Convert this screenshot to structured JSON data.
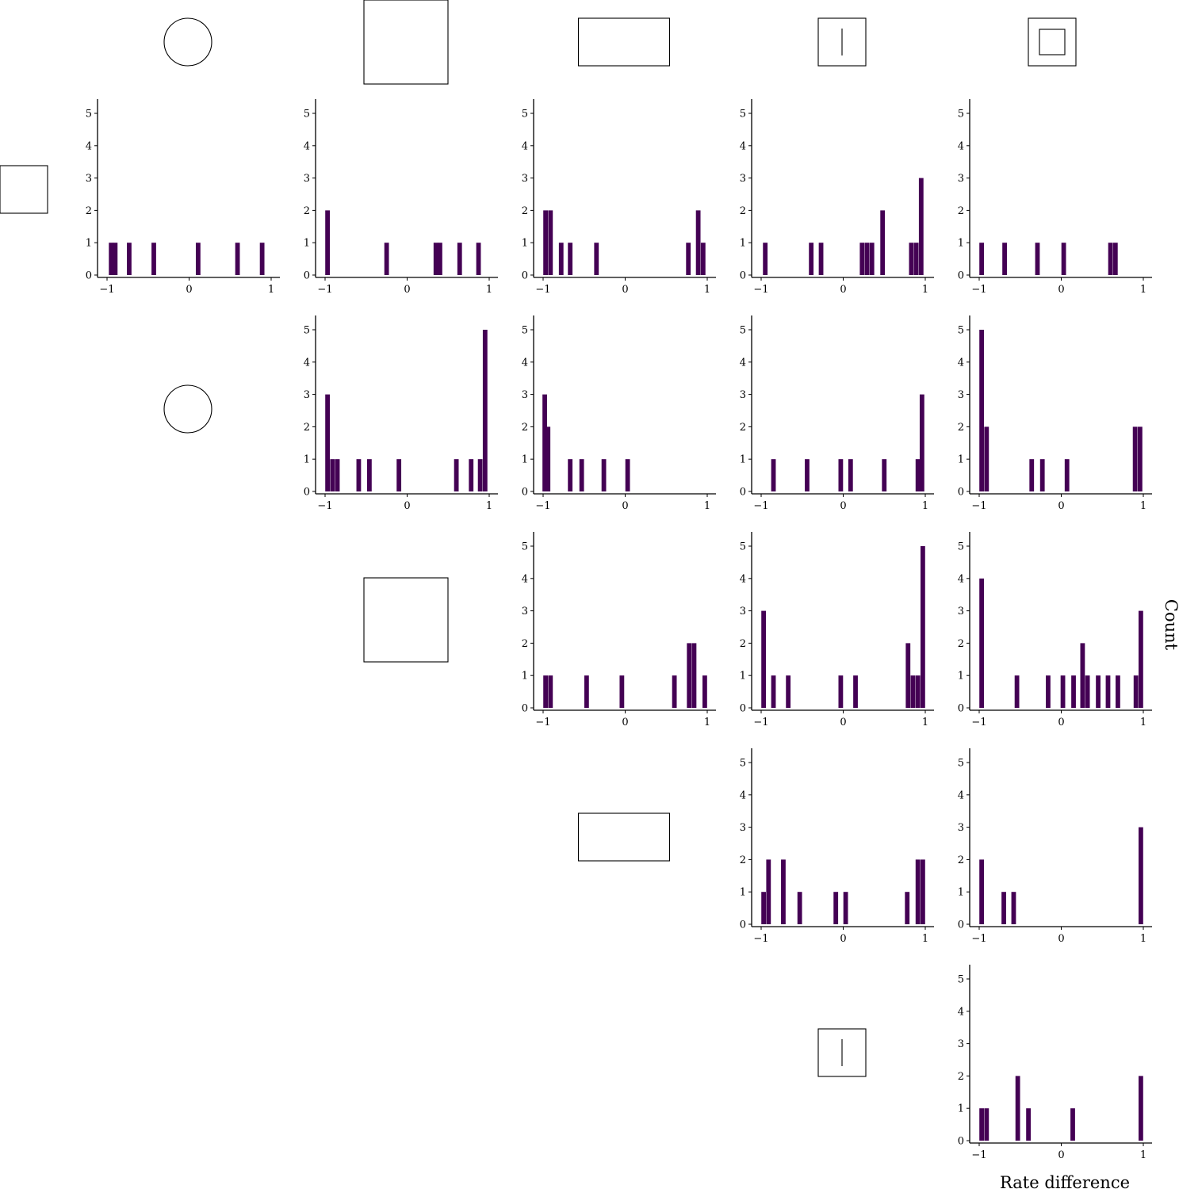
{
  "figure": {
    "xlabel": "Rate difference",
    "ylabel": "Count"
  },
  "colors": {
    "bar": "#440154",
    "axis": "#000000",
    "glyph_stroke": "#000000"
  },
  "glyphs": {
    "column_headers": [
      "square-small",
      "circle",
      "square-large",
      "rectangle-wide",
      "square-with-vertical-line",
      "nested-squares"
    ],
    "row_labels": [
      "square-small",
      "circle",
      "square-large",
      "rectangle-wide",
      "square-with-vertical-line"
    ]
  },
  "chart_data": [
    {
      "type": "bar",
      "row": 0,
      "col": 0,
      "x": [
        -0.95,
        -0.9,
        -0.73,
        -0.43,
        0.11,
        0.59,
        0.89
      ],
      "values": [
        1,
        1,
        1,
        1,
        1,
        1,
        1
      ],
      "xticks": [
        -1,
        0,
        1
      ],
      "yticks": [
        0,
        1,
        2,
        3,
        4,
        5
      ],
      "xlim": [
        -1.1,
        1.1
      ],
      "ylim": [
        0,
        5.5
      ]
    },
    {
      "type": "bar",
      "row": 0,
      "col": 1,
      "x": [
        -0.97,
        -0.25,
        0.35,
        0.4,
        0.64,
        0.87
      ],
      "values": [
        2,
        1,
        1,
        1,
        1,
        1
      ],
      "xticks": [
        -1,
        0,
        1
      ],
      "yticks": [
        0,
        1,
        2,
        3,
        4,
        5
      ],
      "xlim": [
        -1.1,
        1.1
      ],
      "ylim": [
        0,
        5.5
      ]
    },
    {
      "type": "bar",
      "row": 0,
      "col": 2,
      "x": [
        -0.97,
        -0.91,
        -0.78,
        -0.67,
        -0.35,
        0.77,
        0.89,
        0.95
      ],
      "values": [
        2,
        2,
        1,
        1,
        1,
        1,
        2,
        1
      ],
      "xticks": [
        -1,
        0,
        1
      ],
      "yticks": [
        0,
        1,
        2,
        3,
        4,
        5
      ],
      "xlim": [
        -1.1,
        1.1
      ],
      "ylim": [
        0,
        5.5
      ]
    },
    {
      "type": "bar",
      "row": 0,
      "col": 3,
      "x": [
        -0.95,
        -0.39,
        -0.27,
        0.23,
        0.29,
        0.35,
        0.48,
        0.83,
        0.89,
        0.95
      ],
      "values": [
        1,
        1,
        1,
        1,
        1,
        1,
        2,
        1,
        1,
        3
      ],
      "xticks": [
        -1,
        0,
        1
      ],
      "yticks": [
        0,
        1,
        2,
        3,
        4,
        5
      ],
      "xlim": [
        -1.1,
        1.1
      ],
      "ylim": [
        0,
        5.5
      ]
    },
    {
      "type": "bar",
      "row": 0,
      "col": 4,
      "x": [
        -0.97,
        -0.69,
        -0.29,
        0.03,
        0.6,
        0.66
      ],
      "values": [
        1,
        1,
        1,
        1,
        1,
        1
      ],
      "xticks": [
        -1,
        0,
        1
      ],
      "yticks": [
        0,
        1,
        2,
        3,
        4,
        5
      ],
      "xlim": [
        -1.1,
        1.1
      ],
      "ylim": [
        0,
        5.5
      ]
    },
    {
      "type": "bar",
      "row": 1,
      "col": 1,
      "x": [
        -0.97,
        -0.91,
        -0.85,
        -0.59,
        -0.46,
        -0.1,
        0.6,
        0.78,
        0.89,
        0.95
      ],
      "values": [
        3,
        1,
        1,
        1,
        1,
        1,
        1,
        1,
        1,
        5
      ],
      "xticks": [
        -1,
        0,
        1
      ],
      "yticks": [
        0,
        1,
        2,
        3,
        4,
        5
      ],
      "xlim": [
        -1.1,
        1.1
      ],
      "ylim": [
        0,
        5.5
      ]
    },
    {
      "type": "bar",
      "row": 1,
      "col": 2,
      "x": [
        -0.98,
        -0.94,
        -0.67,
        -0.53,
        -0.26,
        0.03
      ],
      "values": [
        3,
        2,
        1,
        1,
        1,
        1
      ],
      "xticks": [
        -1,
        0,
        1
      ],
      "yticks": [
        0,
        1,
        2,
        3,
        4,
        5
      ],
      "xlim": [
        -1.1,
        1.1
      ],
      "ylim": [
        0,
        5.5
      ]
    },
    {
      "type": "bar",
      "row": 1,
      "col": 3,
      "x": [
        -0.85,
        -0.44,
        -0.03,
        0.09,
        0.5,
        0.91,
        0.96
      ],
      "values": [
        1,
        1,
        1,
        1,
        1,
        1,
        3
      ],
      "xticks": [
        -1,
        0,
        1
      ],
      "yticks": [
        0,
        1,
        2,
        3,
        4,
        5
      ],
      "xlim": [
        -1.1,
        1.1
      ],
      "ylim": [
        0,
        5.5
      ]
    },
    {
      "type": "bar",
      "row": 1,
      "col": 4,
      "x": [
        -0.97,
        -0.91,
        -0.36,
        -0.23,
        0.07,
        0.9,
        0.96
      ],
      "values": [
        5,
        2,
        1,
        1,
        1,
        2,
        2
      ],
      "xticks": [
        -1,
        0,
        1
      ],
      "yticks": [
        0,
        1,
        2,
        3,
        4,
        5
      ],
      "xlim": [
        -1.1,
        1.1
      ],
      "ylim": [
        0,
        5.5
      ]
    },
    {
      "type": "bar",
      "row": 2,
      "col": 2,
      "x": [
        -0.97,
        -0.91,
        -0.47,
        -0.04,
        0.6,
        0.78,
        0.84,
        0.97
      ],
      "values": [
        1,
        1,
        1,
        1,
        1,
        2,
        2,
        1
      ],
      "xticks": [
        -1,
        0,
        1
      ],
      "yticks": [
        0,
        1,
        2,
        3,
        4,
        5
      ],
      "xlim": [
        -1.1,
        1.1
      ],
      "ylim": [
        0,
        5.5
      ]
    },
    {
      "type": "bar",
      "row": 2,
      "col": 3,
      "x": [
        -0.97,
        -0.85,
        -0.67,
        -0.03,
        0.15,
        0.79,
        0.85,
        0.91,
        0.97
      ],
      "values": [
        3,
        1,
        1,
        1,
        1,
        2,
        1,
        1,
        5
      ],
      "xticks": [
        -1,
        0,
        1
      ],
      "yticks": [
        0,
        1,
        2,
        3,
        4,
        5
      ],
      "xlim": [
        -1.1,
        1.1
      ],
      "ylim": [
        0,
        5.5
      ]
    },
    {
      "type": "bar",
      "row": 2,
      "col": 4,
      "x": [
        -0.97,
        -0.54,
        -0.16,
        0.02,
        0.15,
        0.26,
        0.32,
        0.45,
        0.57,
        0.69,
        0.91,
        0.97
      ],
      "values": [
        4,
        1,
        1,
        1,
        1,
        2,
        1,
        1,
        1,
        1,
        1,
        3
      ],
      "xticks": [
        -1,
        0,
        1
      ],
      "yticks": [
        0,
        1,
        2,
        3,
        4,
        5
      ],
      "xlim": [
        -1.1,
        1.1
      ],
      "ylim": [
        0,
        5.5
      ]
    },
    {
      "type": "bar",
      "row": 3,
      "col": 3,
      "x": [
        -0.97,
        -0.91,
        -0.73,
        -0.53,
        -0.09,
        0.03,
        0.78,
        0.91,
        0.97
      ],
      "values": [
        1,
        2,
        2,
        1,
        1,
        1,
        1,
        2,
        2
      ],
      "xticks": [
        -1,
        0,
        1
      ],
      "yticks": [
        0,
        1,
        2,
        3,
        4,
        5
      ],
      "xlim": [
        -1.1,
        1.1
      ],
      "ylim": [
        0,
        5.5
      ]
    },
    {
      "type": "bar",
      "row": 3,
      "col": 4,
      "x": [
        -0.97,
        -0.7,
        -0.58,
        0.97
      ],
      "values": [
        2,
        1,
        1,
        3
      ],
      "xticks": [
        -1,
        0,
        1
      ],
      "yticks": [
        0,
        1,
        2,
        3,
        4,
        5
      ],
      "xlim": [
        -1.1,
        1.1
      ],
      "ylim": [
        0,
        5.5
      ]
    },
    {
      "type": "bar",
      "row": 4,
      "col": 4,
      "x": [
        -0.97,
        -0.91,
        -0.53,
        -0.4,
        0.14,
        0.97
      ],
      "values": [
        1,
        1,
        2,
        1,
        1,
        2
      ],
      "xticks": [
        -1,
        0,
        1
      ],
      "yticks": [
        0,
        1,
        2,
        3,
        4,
        5
      ],
      "xlim": [
        -1.1,
        1.1
      ],
      "ylim": [
        0,
        5.5
      ]
    }
  ]
}
